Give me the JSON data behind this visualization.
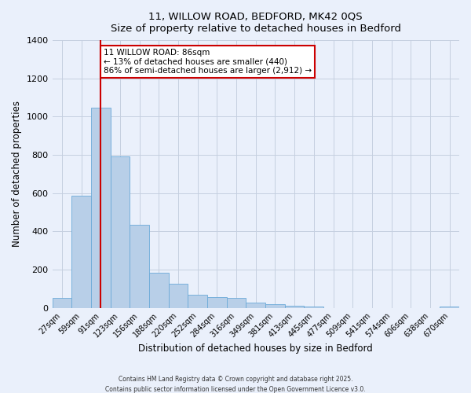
{
  "title_line1": "11, WILLOW ROAD, BEDFORD, MK42 0QS",
  "title_line2": "Size of property relative to detached houses in Bedford",
  "xlabel": "Distribution of detached houses by size in Bedford",
  "ylabel": "Number of detached properties",
  "bar_labels": [
    "27sqm",
    "59sqm",
    "91sqm",
    "123sqm",
    "156sqm",
    "188sqm",
    "220sqm",
    "252sqm",
    "284sqm",
    "316sqm",
    "349sqm",
    "381sqm",
    "413sqm",
    "445sqm",
    "477sqm",
    "509sqm",
    "541sqm",
    "574sqm",
    "606sqm",
    "638sqm",
    "670sqm"
  ],
  "bar_heights": [
    50,
    585,
    1047,
    793,
    435,
    183,
    125,
    70,
    55,
    50,
    28,
    20,
    10,
    6,
    0,
    0,
    0,
    0,
    0,
    0,
    8
  ],
  "bar_color": "#b8cfe8",
  "bar_edge_color": "#6baad8",
  "ylim": [
    0,
    1400
  ],
  "yticks": [
    0,
    200,
    400,
    600,
    800,
    1000,
    1200,
    1400
  ],
  "vline_x_index": 2,
  "vline_color": "#cc0000",
  "annotation_title": "11 WILLOW ROAD: 86sqm",
  "annotation_line2": "← 13% of detached houses are smaller (440)",
  "annotation_line3": "86% of semi-detached houses are larger (2,912) →",
  "annotation_box_color": "#cc0000",
  "background_color": "#eaf0fb",
  "grid_color": "#c5cfe0",
  "title_fontsize": 10,
  "footnote1": "Contains HM Land Registry data © Crown copyright and database right 2025.",
  "footnote2": "Contains public sector information licensed under the Open Government Licence v3.0."
}
